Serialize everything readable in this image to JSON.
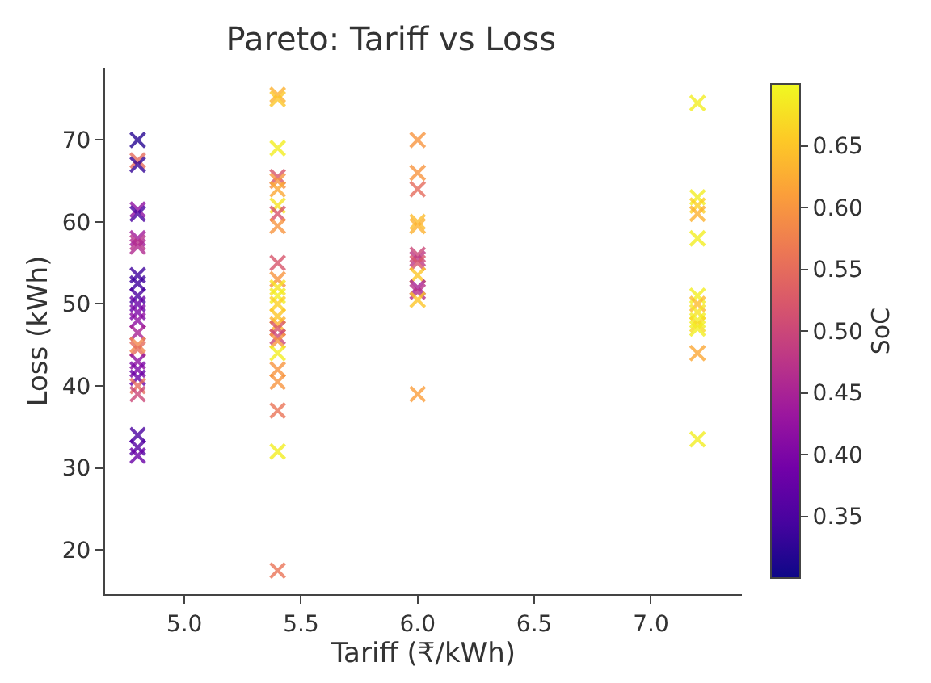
{
  "chart_data": {
    "type": "scatter",
    "title": "Pareto: Tariff vs Loss",
    "xlabel": "Tariff (₹/kWh)",
    "ylabel": "Loss (kWh)",
    "clabel": "SoC",
    "x": [
      4.8,
      4.8,
      4.8,
      4.8,
      4.8,
      4.8,
      4.8,
      4.8,
      4.8,
      4.8,
      4.8,
      4.8,
      4.8,
      4.8,
      4.8,
      4.8,
      4.8,
      4.8,
      4.8,
      4.8,
      4.8,
      4.8,
      4.8,
      4.8,
      4.8,
      5.4,
      5.4,
      5.4,
      5.4,
      5.4,
      5.4,
      5.4,
      5.4,
      5.4,
      5.4,
      5.4,
      5.4,
      5.4,
      5.4,
      5.4,
      5.4,
      5.4,
      5.4,
      5.4,
      5.4,
      5.4,
      5.4,
      5.4,
      5.4,
      5.4,
      6.0,
      6.0,
      6.0,
      6.0,
      6.0,
      6.0,
      6.0,
      6.0,
      6.0,
      6.0,
      6.0,
      6.0,
      6.0,
      7.2,
      7.2,
      7.2,
      7.2,
      7.2,
      7.2,
      7.2,
      7.2,
      7.2,
      7.2,
      7.2,
      7.2,
      7.2
    ],
    "values": [
      70,
      67.5,
      67,
      61.5,
      61,
      58,
      57.5,
      57,
      53.5,
      52.5,
      51,
      50,
      49,
      48,
      46.5,
      45,
      44.5,
      43,
      42,
      41,
      40,
      39,
      34,
      32.5,
      31.5,
      75.5,
      75,
      69,
      65.5,
      65,
      64,
      62,
      61,
      59.5,
      55,
      53,
      52,
      51,
      50,
      48.5,
      47.5,
      47,
      46,
      45.5,
      44,
      42,
      40.5,
      37,
      32,
      17.5,
      70,
      66,
      64,
      60,
      59.5,
      56,
      55.5,
      55,
      53.5,
      52,
      51.5,
      50.5,
      39,
      74.5,
      63,
      62,
      61,
      58,
      51,
      50,
      49,
      48,
      47.5,
      47,
      44,
      33.5
    ],
    "cvalues": [
      0.32,
      0.55,
      0.33,
      0.42,
      0.35,
      0.44,
      0.47,
      0.46,
      0.34,
      0.34,
      0.35,
      0.38,
      0.4,
      0.42,
      0.45,
      0.58,
      0.55,
      0.42,
      0.4,
      0.38,
      0.55,
      0.5,
      0.35,
      0.36,
      0.38,
      0.63,
      0.65,
      0.69,
      0.52,
      0.6,
      0.62,
      0.68,
      0.52,
      0.6,
      0.52,
      0.6,
      0.68,
      0.69,
      0.66,
      0.65,
      0.63,
      0.52,
      0.5,
      0.6,
      0.69,
      0.6,
      0.6,
      0.56,
      0.69,
      0.56,
      0.6,
      0.6,
      0.55,
      0.64,
      0.63,
      0.5,
      0.48,
      0.52,
      0.65,
      0.45,
      0.47,
      0.65,
      0.61,
      0.69,
      0.69,
      0.66,
      0.63,
      0.69,
      0.69,
      0.64,
      0.68,
      0.69,
      0.67,
      0.69,
      0.62,
      0.69
    ],
    "xlim": [
      4.66,
      7.39
    ],
    "xticks": [
      {
        "value": 5,
        "label": "5.0"
      },
      {
        "value": 5.5,
        "label": "5.5"
      },
      {
        "value": 6,
        "label": "6.0"
      },
      {
        "value": 6.5,
        "label": "6.5"
      },
      {
        "value": 7,
        "label": "7.0"
      }
    ],
    "ylim": [
      14.6,
      78.8
    ],
    "yticks": [
      20,
      30,
      40,
      50,
      60,
      70
    ],
    "clim": [
      0.3,
      0.7
    ],
    "cticks": [
      {
        "value": 0.35,
        "label": "0.35"
      },
      {
        "value": 0.4,
        "label": "0.40"
      },
      {
        "value": 0.45,
        "label": "0.45"
      },
      {
        "value": 0.5,
        "label": "0.50"
      },
      {
        "value": 0.55,
        "label": "0.55"
      },
      {
        "value": 0.6,
        "label": "0.60"
      },
      {
        "value": 0.65,
        "label": "0.65"
      }
    ],
    "marker": "cross"
  }
}
